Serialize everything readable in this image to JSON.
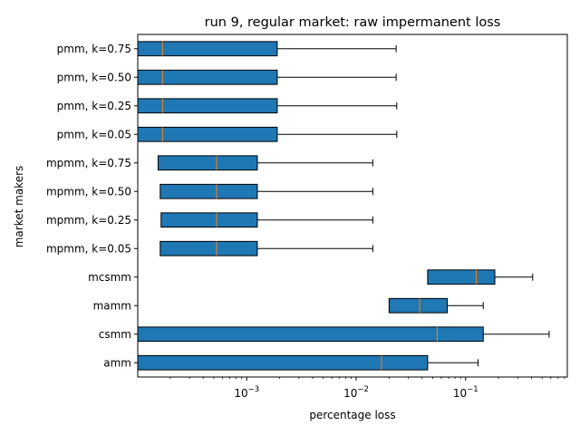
{
  "chart_data": {
    "type": "boxplot-horizontal",
    "title": "run 9, regular market: raw impermanent loss",
    "xlabel": "percentage loss",
    "ylabel": "market makers",
    "xscale": "log",
    "xlim": [
      0.000101,
      0.85
    ],
    "xticks": [
      {
        "value": 0.001,
        "base": "10",
        "exp": "−3"
      },
      {
        "value": 0.01,
        "base": "10",
        "exp": "−2"
      },
      {
        "value": 0.1,
        "base": "10",
        "exp": "−1"
      }
    ],
    "grid": false,
    "colors": {
      "box_fill": "#1f77b4",
      "median": "#ff7f0e",
      "edge": "#000000"
    },
    "categories": [
      "amm",
      "csmm",
      "mamm",
      "mcsmm",
      "mpmm, k=0.05",
      "mpmm, k=0.25",
      "mpmm, k=0.50",
      "mpmm, k=0.75",
      "pmm, k=0.05",
      "pmm, k=0.25",
      "pmm, k=0.50",
      "pmm, k=0.75"
    ],
    "boxes": [
      {
        "label": "amm",
        "whislo": 0.0001,
        "q1": 0.0001,
        "med": 0.017,
        "q3": 0.045,
        "whishi": 0.13
      },
      {
        "label": "csmm",
        "whislo": 0.0001,
        "q1": 0.0001,
        "med": 0.055,
        "q3": 0.145,
        "whishi": 0.58
      },
      {
        "label": "mamm",
        "whislo": 0.02,
        "q1": 0.02,
        "med": 0.038,
        "q3": 0.068,
        "whishi": 0.145
      },
      {
        "label": "mcsmm",
        "whislo": 0.045,
        "q1": 0.045,
        "med": 0.125,
        "q3": 0.185,
        "whishi": 0.41
      },
      {
        "label": "mpmm, k=0.05",
        "whislo": 0.000162,
        "q1": 0.000162,
        "med": 0.00053,
        "q3": 0.00125,
        "whishi": 0.0142
      },
      {
        "label": "mpmm, k=0.25",
        "whislo": 0.000165,
        "q1": 0.000165,
        "med": 0.00053,
        "q3": 0.00125,
        "whishi": 0.0142
      },
      {
        "label": "mpmm, k=0.50",
        "whislo": 0.000162,
        "q1": 0.000162,
        "med": 0.00053,
        "q3": 0.00125,
        "whishi": 0.0142
      },
      {
        "label": "mpmm, k=0.75",
        "whislo": 0.000155,
        "q1": 0.000155,
        "med": 0.00053,
        "q3": 0.00125,
        "whishi": 0.0142
      },
      {
        "label": "pmm, k=0.05",
        "whislo": 0.0001,
        "q1": 0.0001,
        "med": 0.00017,
        "q3": 0.0019,
        "whishi": 0.0235
      },
      {
        "label": "pmm, k=0.25",
        "whislo": 0.0001,
        "q1": 0.0001,
        "med": 0.00017,
        "q3": 0.0019,
        "whishi": 0.0235
      },
      {
        "label": "pmm, k=0.50",
        "whislo": 0.0001,
        "q1": 0.0001,
        "med": 0.00017,
        "q3": 0.0019,
        "whishi": 0.0232
      },
      {
        "label": "pmm, k=0.75",
        "whislo": 0.0001,
        "q1": 0.0001,
        "med": 0.00017,
        "q3": 0.0019,
        "whishi": 0.0232
      }
    ]
  }
}
